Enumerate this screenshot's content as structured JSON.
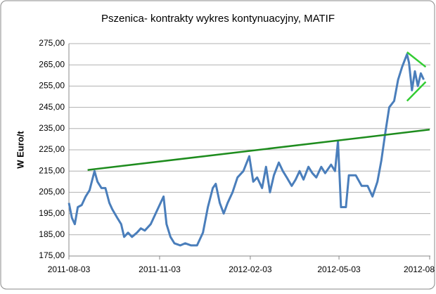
{
  "chart_data": {
    "type": "line",
    "title": "Pszenica- kontrakty wykres kontynuacyjny, MATIF",
    "y_label": "W Euro/t",
    "color": "#4a7ebb",
    "x": [
      "2011-08-03",
      "2011-08-06",
      "2011-08-09",
      "2011-08-12",
      "2011-08-16",
      "2011-08-20",
      "2011-08-24",
      "2011-08-29",
      "2011-09-01",
      "2011-09-05",
      "2011-09-09",
      "2011-09-13",
      "2011-09-16",
      "2011-09-21",
      "2011-09-25",
      "2011-09-28",
      "2011-10-02",
      "2011-10-06",
      "2011-10-11",
      "2011-10-15",
      "2011-10-19",
      "2011-10-25",
      "2011-10-31",
      "2011-11-07",
      "2011-11-10",
      "2011-11-14",
      "2011-11-18",
      "2011-11-24",
      "2011-11-29",
      "2011-12-05",
      "2011-12-11",
      "2011-12-17",
      "2011-12-22",
      "2011-12-27",
      "2011-12-30",
      "2012-01-03",
      "2012-01-07",
      "2012-01-11",
      "2012-01-16",
      "2012-01-21",
      "2012-01-27",
      "2012-02-02",
      "2012-02-06",
      "2012-02-10",
      "2012-02-15",
      "2012-02-19",
      "2012-02-23",
      "2012-02-27",
      "2012-03-03",
      "2012-03-07",
      "2012-03-11",
      "2012-03-16",
      "2012-03-20",
      "2012-03-24",
      "2012-03-28",
      "2012-04-02",
      "2012-04-06",
      "2012-04-10",
      "2012-04-15",
      "2012-04-19",
      "2012-04-25",
      "2012-04-29",
      "2012-05-02",
      "2012-05-05",
      "2012-05-10",
      "2012-05-13",
      "2012-05-20",
      "2012-05-26",
      "2012-06-01",
      "2012-06-06",
      "2012-06-11",
      "2012-06-15",
      "2012-06-19",
      "2012-06-23",
      "2012-06-28",
      "2012-07-02",
      "2012-07-06",
      "2012-07-11",
      "2012-07-13",
      "2012-07-16",
      "2012-07-19",
      "2012-07-22",
      "2012-07-25",
      "2012-07-28"
    ],
    "values": [
      200,
      193,
      190,
      198,
      199,
      203,
      206,
      215,
      210,
      207,
      207,
      200,
      197,
      193,
      190,
      184,
      186,
      184,
      186,
      188,
      187,
      190,
      196,
      203,
      190,
      184,
      181,
      180,
      181,
      180,
      180,
      186,
      198,
      207,
      209,
      200,
      195,
      200,
      205,
      212,
      215,
      222,
      210,
      212,
      207,
      217,
      205,
      213,
      219,
      215,
      212,
      208,
      211,
      215,
      211,
      217,
      214,
      212,
      217,
      214,
      218,
      215,
      229,
      198,
      198,
      213,
      213,
      208,
      208,
      203,
      210,
      220,
      233,
      245,
      248,
      258,
      264,
      270,
      266,
      253,
      262,
      255,
      261,
      258
    ],
    "trendlines": [
      {
        "color": "#1e8c1e",
        "x": [
          "2011-08-22",
          "2012-08-03"
        ],
        "values": [
          215.5,
          234.5
        ]
      },
      {
        "color": "#33cc33",
        "x": [
          "2012-07-11",
          "2012-07-30"
        ],
        "values": [
          271,
          264
        ]
      },
      {
        "color": "#33cc33",
        "x": [
          "2012-07-11",
          "2012-07-30"
        ],
        "values": [
          248,
          257
        ]
      }
    ],
    "xlim": [
      "2011-08-03",
      "2012-08-03"
    ],
    "xticks": [
      "2011-08-03",
      "2011-11-03",
      "2012-02-03",
      "2012-05-03",
      {
        "value": "2012-08-03",
        "label": "2012-08"
      }
    ],
    "ylim": [
      175,
      275
    ],
    "yticks": [
      {
        "value": 175,
        "label": "175,00"
      },
      {
        "value": 185,
        "label": "185,00"
      },
      {
        "value": 195,
        "label": "195,00"
      },
      {
        "value": 205,
        "label": "205,00"
      },
      {
        "value": 215,
        "label": "215,00"
      },
      {
        "value": 225,
        "label": "225,00"
      },
      {
        "value": 235,
        "label": "235,00"
      },
      {
        "value": 245,
        "label": "245,00"
      },
      {
        "value": 255,
        "label": "255,00"
      },
      {
        "value": 265,
        "label": "265,00"
      },
      {
        "value": 275,
        "label": "275,00"
      }
    ],
    "grid": true
  }
}
